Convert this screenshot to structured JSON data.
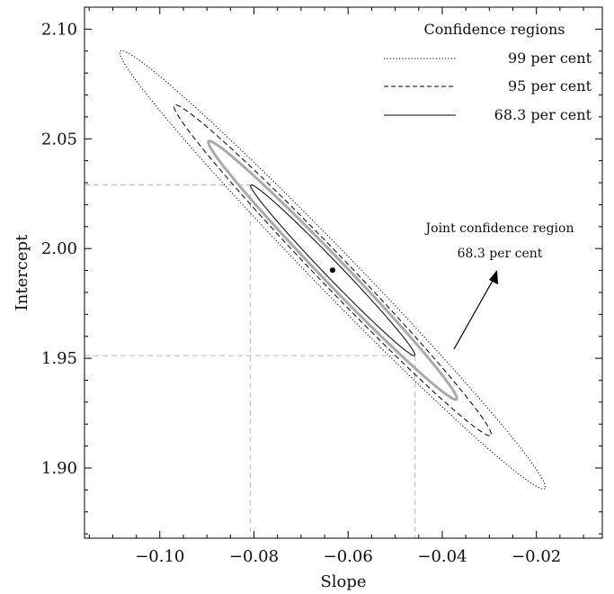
{
  "chart_data": {
    "type": "contour",
    "xlabel": "Slope",
    "ylabel": "Intercept",
    "xlim": [
      -0.116,
      -0.006
    ],
    "ylim": [
      1.868,
      2.11
    ],
    "xticks": [
      -0.1,
      -0.08,
      -0.06,
      -0.04,
      -0.02
    ],
    "xtick_labels": [
      "−0.10",
      "−0.08",
      "−0.06",
      "−0.04",
      "−0.02"
    ],
    "yticks": [
      1.9,
      1.95,
      2.0,
      2.05,
      2.1
    ],
    "ytick_labels": [
      "1.90",
      "1.95",
      "2.00",
      "2.05",
      "2.10"
    ],
    "best_fit": {
      "slope": -0.0633,
      "intercept": 1.9902
    },
    "regions": [
      {
        "label": "99 per cent",
        "style": "dotted",
        "color": "#000000",
        "slope_range": [
          -0.1085,
          -0.0181
        ],
        "intercept_range": [
          1.8904,
          2.0902
        ]
      },
      {
        "label": "95 per cent",
        "style": "dashed",
        "color": "#000000",
        "slope_range": [
          -0.097,
          -0.0296
        ],
        "intercept_range": [
          1.9147,
          2.0655
        ]
      },
      {
        "label": "Joint 68.3 per cent",
        "style": "solid-thick",
        "color": "#aaaaaa",
        "slope_range": [
          -0.0897,
          -0.0369
        ],
        "intercept_range": [
          1.9312,
          2.049
        ]
      },
      {
        "label": "68.3 per cent",
        "style": "solid",
        "color": "#000000",
        "slope_range": [
          -0.0807,
          -0.0458
        ],
        "intercept_range": [
          1.9512,
          2.029
        ]
      }
    ],
    "projection_lines": {
      "slope": [
        -0.0808,
        -0.0458
      ],
      "intercept": [
        1.9512,
        2.029
      ]
    },
    "legend": {
      "title": "Confidence regions",
      "position": "top-right",
      "entries": [
        {
          "label": "99 per cent",
          "style": "dotted"
        },
        {
          "label": "95 per cent",
          "style": "dashed"
        },
        {
          "label": "68.3 per cent",
          "style": "solid"
        }
      ]
    },
    "annotation": {
      "line1": "Joint confidence region",
      "line2": "68.3 per cent"
    },
    "grid": false
  }
}
